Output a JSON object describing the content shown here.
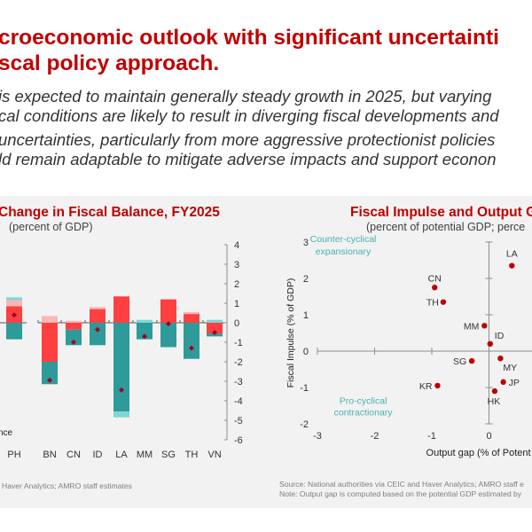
{
  "slide": {
    "title_lines": [
      "croeconomic outlook with significant uncertainti",
      "scal policy approach."
    ],
    "bullets": [
      [
        " is expected to maintain generally steady growth in 2025, but varying",
        "cal conditions are likely to result in diverging fiscal developments and"
      ],
      [
        " uncertainties, particularly from more aggressive protectionist policies",
        "ld remain adaptable to mitigate adverse impacts and support econon"
      ]
    ]
  },
  "left_chart": {
    "title": "Change in Fiscal Balance, FY2025",
    "subtitle": "(percent of GDP)",
    "legend_fragment": "nce",
    "source": "Haver Analytics; AMRO staff estimates"
  },
  "right_chart": {
    "title": "Fiscal Impulse and Output G",
    "subtitle": "(percent of potential GDP; perce",
    "source_lines": [
      "Source: National authorities via CEIC and Haver Analytics; AMRO staff e",
      "Note: Output gap is computed based on the potential GDP estimated by"
    ]
  },
  "chart_data": [
    {
      "type": "bar",
      "title": "Change in Fiscal Balance, FY2025",
      "subtitle": "(percent of GDP)",
      "stacked": true,
      "categories": [
        "PH",
        "BN",
        "CN",
        "ID",
        "LA",
        "MM",
        "SG",
        "TH",
        "VN"
      ],
      "y_ticks": [
        "4",
        "3",
        "2",
        "1",
        "0",
        "-1",
        "-2",
        "-3",
        "-4",
        "-5",
        "-6"
      ],
      "ylim": [
        -6,
        4
      ],
      "y_axis_side": "right",
      "colors": {
        "red": "#ff4040",
        "teal": "#2e9a9a",
        "pink": "#f8b8b8",
        "light_teal": "#7fd6d6",
        "marker": "#a00020"
      },
      "series": [
        {
          "name": "red component",
          "color": "red",
          "values": [
            0.85,
            -2.0,
            -0.35,
            0.7,
            1.35,
            0.0,
            1.2,
            0.45,
            -0.55
          ]
        },
        {
          "name": "teal component",
          "color": "teal",
          "values": [
            -0.85,
            -1.15,
            -0.8,
            -1.15,
            -4.55,
            -0.85,
            -1.25,
            -1.85,
            -0.15
          ]
        },
        {
          "name": "pink component",
          "color": "pink",
          "values": [
            0.3,
            0.35,
            0.1,
            0.1,
            0.0,
            0.0,
            0.0,
            0.1,
            0.0
          ]
        },
        {
          "name": "light teal component",
          "color": "light_teal",
          "values": [
            0.15,
            0.0,
            0.0,
            0.0,
            -0.3,
            0.15,
            0.0,
            0.0,
            0.15
          ]
        }
      ],
      "total_markers": [
        0.4,
        -2.95,
        -1.0,
        -0.35,
        -3.45,
        -0.7,
        -0.05,
        -1.3,
        -0.5
      ],
      "partial_legend_text": "nce"
    },
    {
      "type": "scatter",
      "title": "Fiscal Impulse and Output G",
      "subtitle": "(percent of potential GDP; perce",
      "xlabel": "Output gap (% of Potent",
      "ylabel": "Fiscal Impulse  (% of GDP)",
      "x_ticks": [
        "-3",
        "-2",
        "-1",
        "0"
      ],
      "y_ticks": [
        "3",
        "2",
        "1",
        "0",
        "-1",
        "-2"
      ],
      "xlim": [
        -3,
        1.5
      ],
      "ylim": [
        -2,
        3
      ],
      "quadrant_labels": [
        {
          "text_lines": [
            "Counter-cyclical",
            "expansionary"
          ],
          "position": "top-left"
        },
        {
          "text_lines": [
            "Pro-cyclical",
            "contractionary"
          ],
          "position": "bottom-left"
        }
      ],
      "points": [
        {
          "label": "LA",
          "x": 0.4,
          "y": 2.35
        },
        {
          "label": "CN",
          "x": -0.95,
          "y": 1.75
        },
        {
          "label": "TH",
          "x": -0.8,
          "y": 1.35
        },
        {
          "label": "MM",
          "x": -0.08,
          "y": 0.7
        },
        {
          "label": "ID",
          "x": 0.02,
          "y": 0.2
        },
        {
          "label": "SG",
          "x": -0.3,
          "y": -0.27
        },
        {
          "label": "MY",
          "x": 0.2,
          "y": -0.2
        },
        {
          "label": "KR",
          "x": -0.9,
          "y": -0.95
        },
        {
          "label": "JP",
          "x": 0.25,
          "y": -0.85
        },
        {
          "label": "HK",
          "x": 0.1,
          "y": -1.1
        }
      ],
      "marker_color": "#c00000"
    }
  ]
}
